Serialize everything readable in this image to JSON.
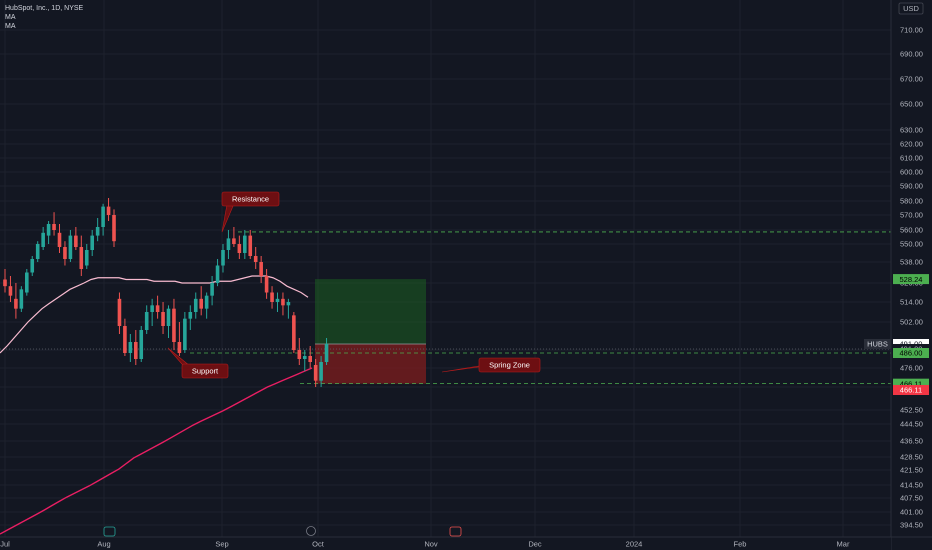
{
  "header": {
    "symbol_line": "HubSpot, Inc., 1D, NYSE",
    "indicators": [
      "MA",
      "MA"
    ]
  },
  "currency_label": "USD",
  "colors": {
    "background": "#131722",
    "up": "#26a69a",
    "down": "#ef5350",
    "ma_fast": "#f8bbd0",
    "ma_slow": "#e91e63",
    "green_level": "#4caf50",
    "profit_zone": "#1b5e20",
    "loss_zone": "#7f1d1d",
    "note_box": "#6d0f12"
  },
  "chart_data": {
    "type": "candlestick",
    "title": "HubSpot, Inc., 1D, NYSE",
    "ylim": [
      390,
      718
    ],
    "y_ticks": [
      "710.00",
      "690.00",
      "670.00",
      "650.00",
      "630.00",
      "620.00",
      "610.00",
      "600.00",
      "590.00",
      "580.00",
      "570.00",
      "560.00",
      "550.00",
      "538.00",
      "526.00",
      "514.00",
      "502.00",
      "488.00",
      "476.00",
      "464.00",
      "452.50",
      "444.50",
      "436.50",
      "428.50",
      "421.50",
      "414.50",
      "407.50",
      "401.00",
      "394.50"
    ],
    "x_labels": [
      "Jul",
      "Aug",
      "Sep",
      "Oct",
      "Nov",
      "Dec",
      "2024",
      "Feb",
      "Mar"
    ],
    "candles": [
      {
        "o": 528,
        "h": 534,
        "l": 520,
        "c": 524
      },
      {
        "o": 524,
        "h": 530,
        "l": 514,
        "c": 518
      },
      {
        "o": 516,
        "h": 526,
        "l": 504,
        "c": 510
      },
      {
        "o": 510,
        "h": 524,
        "l": 508,
        "c": 522
      },
      {
        "o": 520,
        "h": 534,
        "l": 518,
        "c": 532
      },
      {
        "o": 532,
        "h": 542,
        "l": 530,
        "c": 540
      },
      {
        "o": 540,
        "h": 552,
        "l": 538,
        "c": 550
      },
      {
        "o": 548,
        "h": 562,
        "l": 546,
        "c": 558
      },
      {
        "o": 556,
        "h": 566,
        "l": 550,
        "c": 564
      },
      {
        "o": 564,
        "h": 572,
        "l": 556,
        "c": 560
      },
      {
        "o": 558,
        "h": 564,
        "l": 544,
        "c": 548
      },
      {
        "o": 548,
        "h": 552,
        "l": 536,
        "c": 540
      },
      {
        "o": 540,
        "h": 560,
        "l": 538,
        "c": 556
      },
      {
        "o": 556,
        "h": 562,
        "l": 546,
        "c": 548
      },
      {
        "o": 548,
        "h": 556,
        "l": 530,
        "c": 534
      },
      {
        "o": 536,
        "h": 550,
        "l": 534,
        "c": 546
      },
      {
        "o": 546,
        "h": 560,
        "l": 542,
        "c": 556
      },
      {
        "o": 556,
        "h": 568,
        "l": 552,
        "c": 562
      },
      {
        "o": 562,
        "h": 578,
        "l": 556,
        "c": 576
      },
      {
        "o": 576,
        "h": 582,
        "l": 566,
        "c": 570
      },
      {
        "o": 570,
        "h": 574,
        "l": 548,
        "c": 552
      },
      {
        "o": 516,
        "h": 520,
        "l": 496,
        "c": 500
      },
      {
        "o": 500,
        "h": 504,
        "l": 484,
        "c": 486
      },
      {
        "o": 486,
        "h": 496,
        "l": 480,
        "c": 492
      },
      {
        "o": 492,
        "h": 498,
        "l": 478,
        "c": 482
      },
      {
        "o": 482,
        "h": 500,
        "l": 480,
        "c": 498
      },
      {
        "o": 498,
        "h": 512,
        "l": 496,
        "c": 508
      },
      {
        "o": 508,
        "h": 516,
        "l": 500,
        "c": 512
      },
      {
        "o": 512,
        "h": 518,
        "l": 504,
        "c": 508
      },
      {
        "o": 508,
        "h": 514,
        "l": 496,
        "c": 500
      },
      {
        "o": 500,
        "h": 512,
        "l": 494,
        "c": 510
      },
      {
        "o": 510,
        "h": 516,
        "l": 488,
        "c": 492
      },
      {
        "o": 492,
        "h": 502,
        "l": 484,
        "c": 486
      },
      {
        "o": 488,
        "h": 508,
        "l": 486,
        "c": 504
      },
      {
        "o": 504,
        "h": 512,
        "l": 498,
        "c": 508
      },
      {
        "o": 508,
        "h": 520,
        "l": 504,
        "c": 516
      },
      {
        "o": 516,
        "h": 524,
        "l": 506,
        "c": 510
      },
      {
        "o": 510,
        "h": 520,
        "l": 504,
        "c": 518
      },
      {
        "o": 518,
        "h": 530,
        "l": 512,
        "c": 526
      },
      {
        "o": 526,
        "h": 540,
        "l": 524,
        "c": 536
      },
      {
        "o": 536,
        "h": 550,
        "l": 532,
        "c": 546
      },
      {
        "o": 546,
        "h": 560,
        "l": 540,
        "c": 554
      },
      {
        "o": 554,
        "h": 562,
        "l": 548,
        "c": 550
      },
      {
        "o": 550,
        "h": 556,
        "l": 540,
        "c": 544
      },
      {
        "o": 544,
        "h": 560,
        "l": 540,
        "c": 556
      },
      {
        "o": 556,
        "h": 560,
        "l": 540,
        "c": 542
      },
      {
        "o": 542,
        "h": 548,
        "l": 534,
        "c": 538
      },
      {
        "o": 538,
        "h": 542,
        "l": 526,
        "c": 530
      },
      {
        "o": 530,
        "h": 534,
        "l": 516,
        "c": 520
      },
      {
        "o": 520,
        "h": 524,
        "l": 510,
        "c": 514
      },
      {
        "o": 514,
        "h": 520,
        "l": 508,
        "c": 516
      },
      {
        "o": 516,
        "h": 520,
        "l": 506,
        "c": 512
      },
      {
        "o": 512,
        "h": 516,
        "l": 504,
        "c": 514
      },
      {
        "o": 506,
        "h": 508,
        "l": 486,
        "c": 488
      },
      {
        "o": 488,
        "h": 494,
        "l": 478,
        "c": 482
      },
      {
        "o": 482,
        "h": 488,
        "l": 474,
        "c": 484
      },
      {
        "o": 484,
        "h": 490,
        "l": 476,
        "c": 480
      },
      {
        "o": 478,
        "h": 482,
        "l": 464,
        "c": 468
      },
      {
        "o": 468,
        "h": 484,
        "l": 464,
        "c": 480
      },
      {
        "o": 480,
        "h": 494,
        "l": 478,
        "c": 491
      }
    ],
    "series": [
      {
        "name": "MA",
        "values": [
          486,
          490,
          494,
          498,
          502,
          506,
          510,
          513,
          516,
          519,
          522,
          524,
          526,
          528,
          529,
          529,
          529,
          529,
          528,
          528,
          528,
          528,
          527,
          527,
          527,
          527,
          526,
          526,
          526,
          526,
          526,
          527,
          527,
          527,
          528,
          529,
          530,
          530,
          530,
          529,
          527,
          524,
          522,
          520,
          517
        ]
      },
      {
        "name": "MA",
        "values": [
          390,
          392,
          394,
          396,
          398,
          400,
          402,
          404,
          406,
          408,
          410,
          412,
          414,
          416,
          418,
          420,
          422,
          425,
          428,
          430,
          432,
          434,
          436,
          438,
          440,
          442,
          444,
          446,
          448,
          450,
          452,
          454,
          456,
          458,
          460,
          462,
          464,
          466,
          468,
          470,
          472,
          474,
          476
        ]
      }
    ],
    "levels": [
      {
        "label": "558.62",
        "value": 558.62
      },
      {
        "label": "486.00",
        "value": 486.0
      },
      {
        "label": "466.11",
        "value": 466.11
      }
    ],
    "axis_tags": [
      {
        "label": "528.24",
        "value": 528.24,
        "kind": "green"
      },
      {
        "label": "HUBS",
        "value": 491.0,
        "kind": "symbol"
      },
      {
        "label": "491.00",
        "value": 491.0,
        "kind": "white"
      },
      {
        "label": "491.00",
        "value": 488.5,
        "kind": "plain"
      },
      {
        "label": "486.00",
        "value": 486.0,
        "kind": "green"
      },
      {
        "label": "466.11",
        "value": 466.11,
        "kind": "green"
      },
      {
        "label": "466.11",
        "value": 462.5,
        "kind": "red"
      }
    ],
    "position": {
      "entry": 491.0,
      "target": 528.24,
      "stop": 466.11
    },
    "annotations": [
      {
        "text": "Resistance",
        "price": 558.62
      },
      {
        "text": "Support",
        "price": 486.0
      },
      {
        "text": "Spring Zone",
        "price": 466.11
      }
    ]
  }
}
